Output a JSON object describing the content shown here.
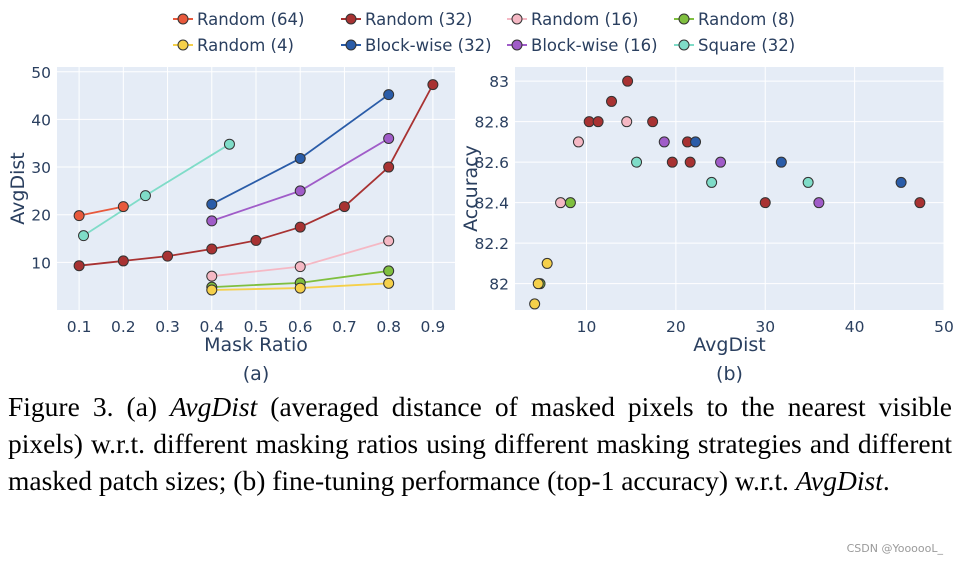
{
  "legend": {
    "position": "top-center",
    "entries": [
      {
        "name": "Random (64)",
        "color": "#e8593c"
      },
      {
        "name": "Random (32)",
        "color": "#a83232"
      },
      {
        "name": "Random (16)",
        "color": "#f5b8c4"
      },
      {
        "name": "Random (8)",
        "color": "#7fbf3f"
      },
      {
        "name": "Random (4)",
        "color": "#f5d04a"
      },
      {
        "name": "Block-wise (32)",
        "color": "#2a5ca8"
      },
      {
        "name": "Block-wise (16)",
        "color": "#a05cc8"
      },
      {
        "name": "Square (32)",
        "color": "#7fdcc8"
      }
    ]
  },
  "chart_data": [
    {
      "type": "line",
      "panel_label": "(a)",
      "xlabel": "Mask Ratio",
      "ylabel": "AvgDist",
      "xlim": [
        0.05,
        0.95
      ],
      "ylim": [
        0,
        51
      ],
      "xticks": [
        0.1,
        0.2,
        0.3,
        0.4,
        0.5,
        0.6,
        0.7,
        0.8,
        0.9
      ],
      "xtick_labels": [
        "0.1",
        "0.2",
        "0.3",
        "0.4",
        "0.5",
        "0.6",
        "0.7",
        "0.8",
        "0.9"
      ],
      "yticks": [
        10,
        20,
        30,
        40,
        50
      ],
      "ytick_labels": [
        "10",
        "20",
        "30",
        "40",
        "50"
      ],
      "grid": true,
      "series": [
        {
          "name": "Random (64)",
          "color": "#e8593c",
          "points": [
            [
              0.1,
              19.8
            ],
            [
              0.2,
              21.7
            ]
          ]
        },
        {
          "name": "Random (32)",
          "color": "#a83232",
          "points": [
            [
              0.1,
              9.3
            ],
            [
              0.2,
              10.3
            ],
            [
              0.3,
              11.3
            ],
            [
              0.4,
              12.8
            ],
            [
              0.5,
              14.6
            ],
            [
              0.6,
              17.4
            ],
            [
              0.7,
              21.7
            ],
            [
              0.8,
              30.0
            ],
            [
              0.9,
              47.3
            ]
          ]
        },
        {
          "name": "Random (16)",
          "color": "#f5b8c4",
          "points": [
            [
              0.4,
              7.1
            ],
            [
              0.6,
              9.1
            ],
            [
              0.8,
              14.5
            ]
          ]
        },
        {
          "name": "Random (8)",
          "color": "#7fbf3f",
          "points": [
            [
              0.4,
              4.8
            ],
            [
              0.6,
              5.7
            ],
            [
              0.8,
              8.2
            ]
          ]
        },
        {
          "name": "Random (4)",
          "color": "#f5d04a",
          "points": [
            [
              0.4,
              4.2
            ],
            [
              0.6,
              4.6
            ],
            [
              0.8,
              5.6
            ]
          ]
        },
        {
          "name": "Block-wise (32)",
          "color": "#2a5ca8",
          "points": [
            [
              0.4,
              22.2
            ],
            [
              0.6,
              31.8
            ],
            [
              0.8,
              45.2
            ]
          ]
        },
        {
          "name": "Block-wise (16)",
          "color": "#a05cc8",
          "points": [
            [
              0.4,
              18.7
            ],
            [
              0.6,
              25.0
            ],
            [
              0.8,
              36.0
            ]
          ]
        },
        {
          "name": "Square (32)",
          "color": "#7fdcc8",
          "points": [
            [
              0.11,
              15.6
            ],
            [
              0.25,
              24.0
            ],
            [
              0.44,
              34.8
            ]
          ]
        }
      ]
    },
    {
      "type": "scatter",
      "panel_label": "(b)",
      "xlabel": "AvgDist",
      "ylabel": "Accuracy",
      "xlim": [
        2,
        50
      ],
      "ylim": [
        81.87,
        83.07
      ],
      "xticks": [
        10,
        20,
        30,
        40,
        50
      ],
      "xtick_labels": [
        "10",
        "20",
        "30",
        "40",
        "50"
      ],
      "yticks": [
        82,
        82.2,
        82.4,
        82.6,
        82.8,
        83
      ],
      "ytick_labels": [
        "82",
        "82.2",
        "82.4",
        "82.6",
        "82.8",
        "83"
      ],
      "grid": true,
      "series": [
        {
          "name": "Random (32)",
          "color": "#a83232",
          "points": [
            [
              10.3,
              82.8
            ],
            [
              11.3,
              82.8
            ],
            [
              12.8,
              82.9
            ],
            [
              14.6,
              83.0
            ],
            [
              17.4,
              82.8
            ],
            [
              19.6,
              82.6
            ],
            [
              21.3,
              82.7
            ],
            [
              21.6,
              82.6
            ],
            [
              30.0,
              82.4
            ],
            [
              47.3,
              82.4
            ]
          ]
        },
        {
          "name": "Random (16)",
          "color": "#f5b8c4",
          "points": [
            [
              7.1,
              82.4
            ],
            [
              9.1,
              82.7
            ],
            [
              14.5,
              82.8
            ]
          ]
        },
        {
          "name": "Random (8)",
          "color": "#7fbf3f",
          "points": [
            [
              4.8,
              82.0
            ],
            [
              8.2,
              82.4
            ]
          ]
        },
        {
          "name": "Random (4)",
          "color": "#f5d04a",
          "points": [
            [
              4.2,
              81.9
            ],
            [
              4.6,
              82.0
            ],
            [
              5.6,
              82.1
            ]
          ]
        },
        {
          "name": "Block-wise (32)",
          "color": "#2a5ca8",
          "points": [
            [
              22.2,
              82.7
            ],
            [
              31.8,
              82.6
            ],
            [
              45.2,
              82.5
            ]
          ]
        },
        {
          "name": "Block-wise (16)",
          "color": "#a05cc8",
          "points": [
            [
              18.7,
              82.7
            ],
            [
              25.0,
              82.6
            ],
            [
              36.0,
              82.4
            ]
          ]
        },
        {
          "name": "Square (32)",
          "color": "#7fdcc8",
          "points": [
            [
              15.6,
              82.6
            ],
            [
              24.0,
              82.5
            ],
            [
              34.8,
              82.5
            ]
          ]
        }
      ]
    }
  ],
  "caption": {
    "label": "Figure 3.",
    "part_a_marker": "(a)",
    "term": "AvgDist",
    "part_a_text": "(averaged distance of masked pixels to the nearest visible pixels) w.r.t. different masking ratios using different masking strategies and different masked patch sizes;",
    "part_b_marker": "(b)",
    "part_b_text": "fine-tuning performance (top-1 accuracy) w.r.t.",
    "end": "."
  },
  "watermark": "CSDN @YoooooL_"
}
